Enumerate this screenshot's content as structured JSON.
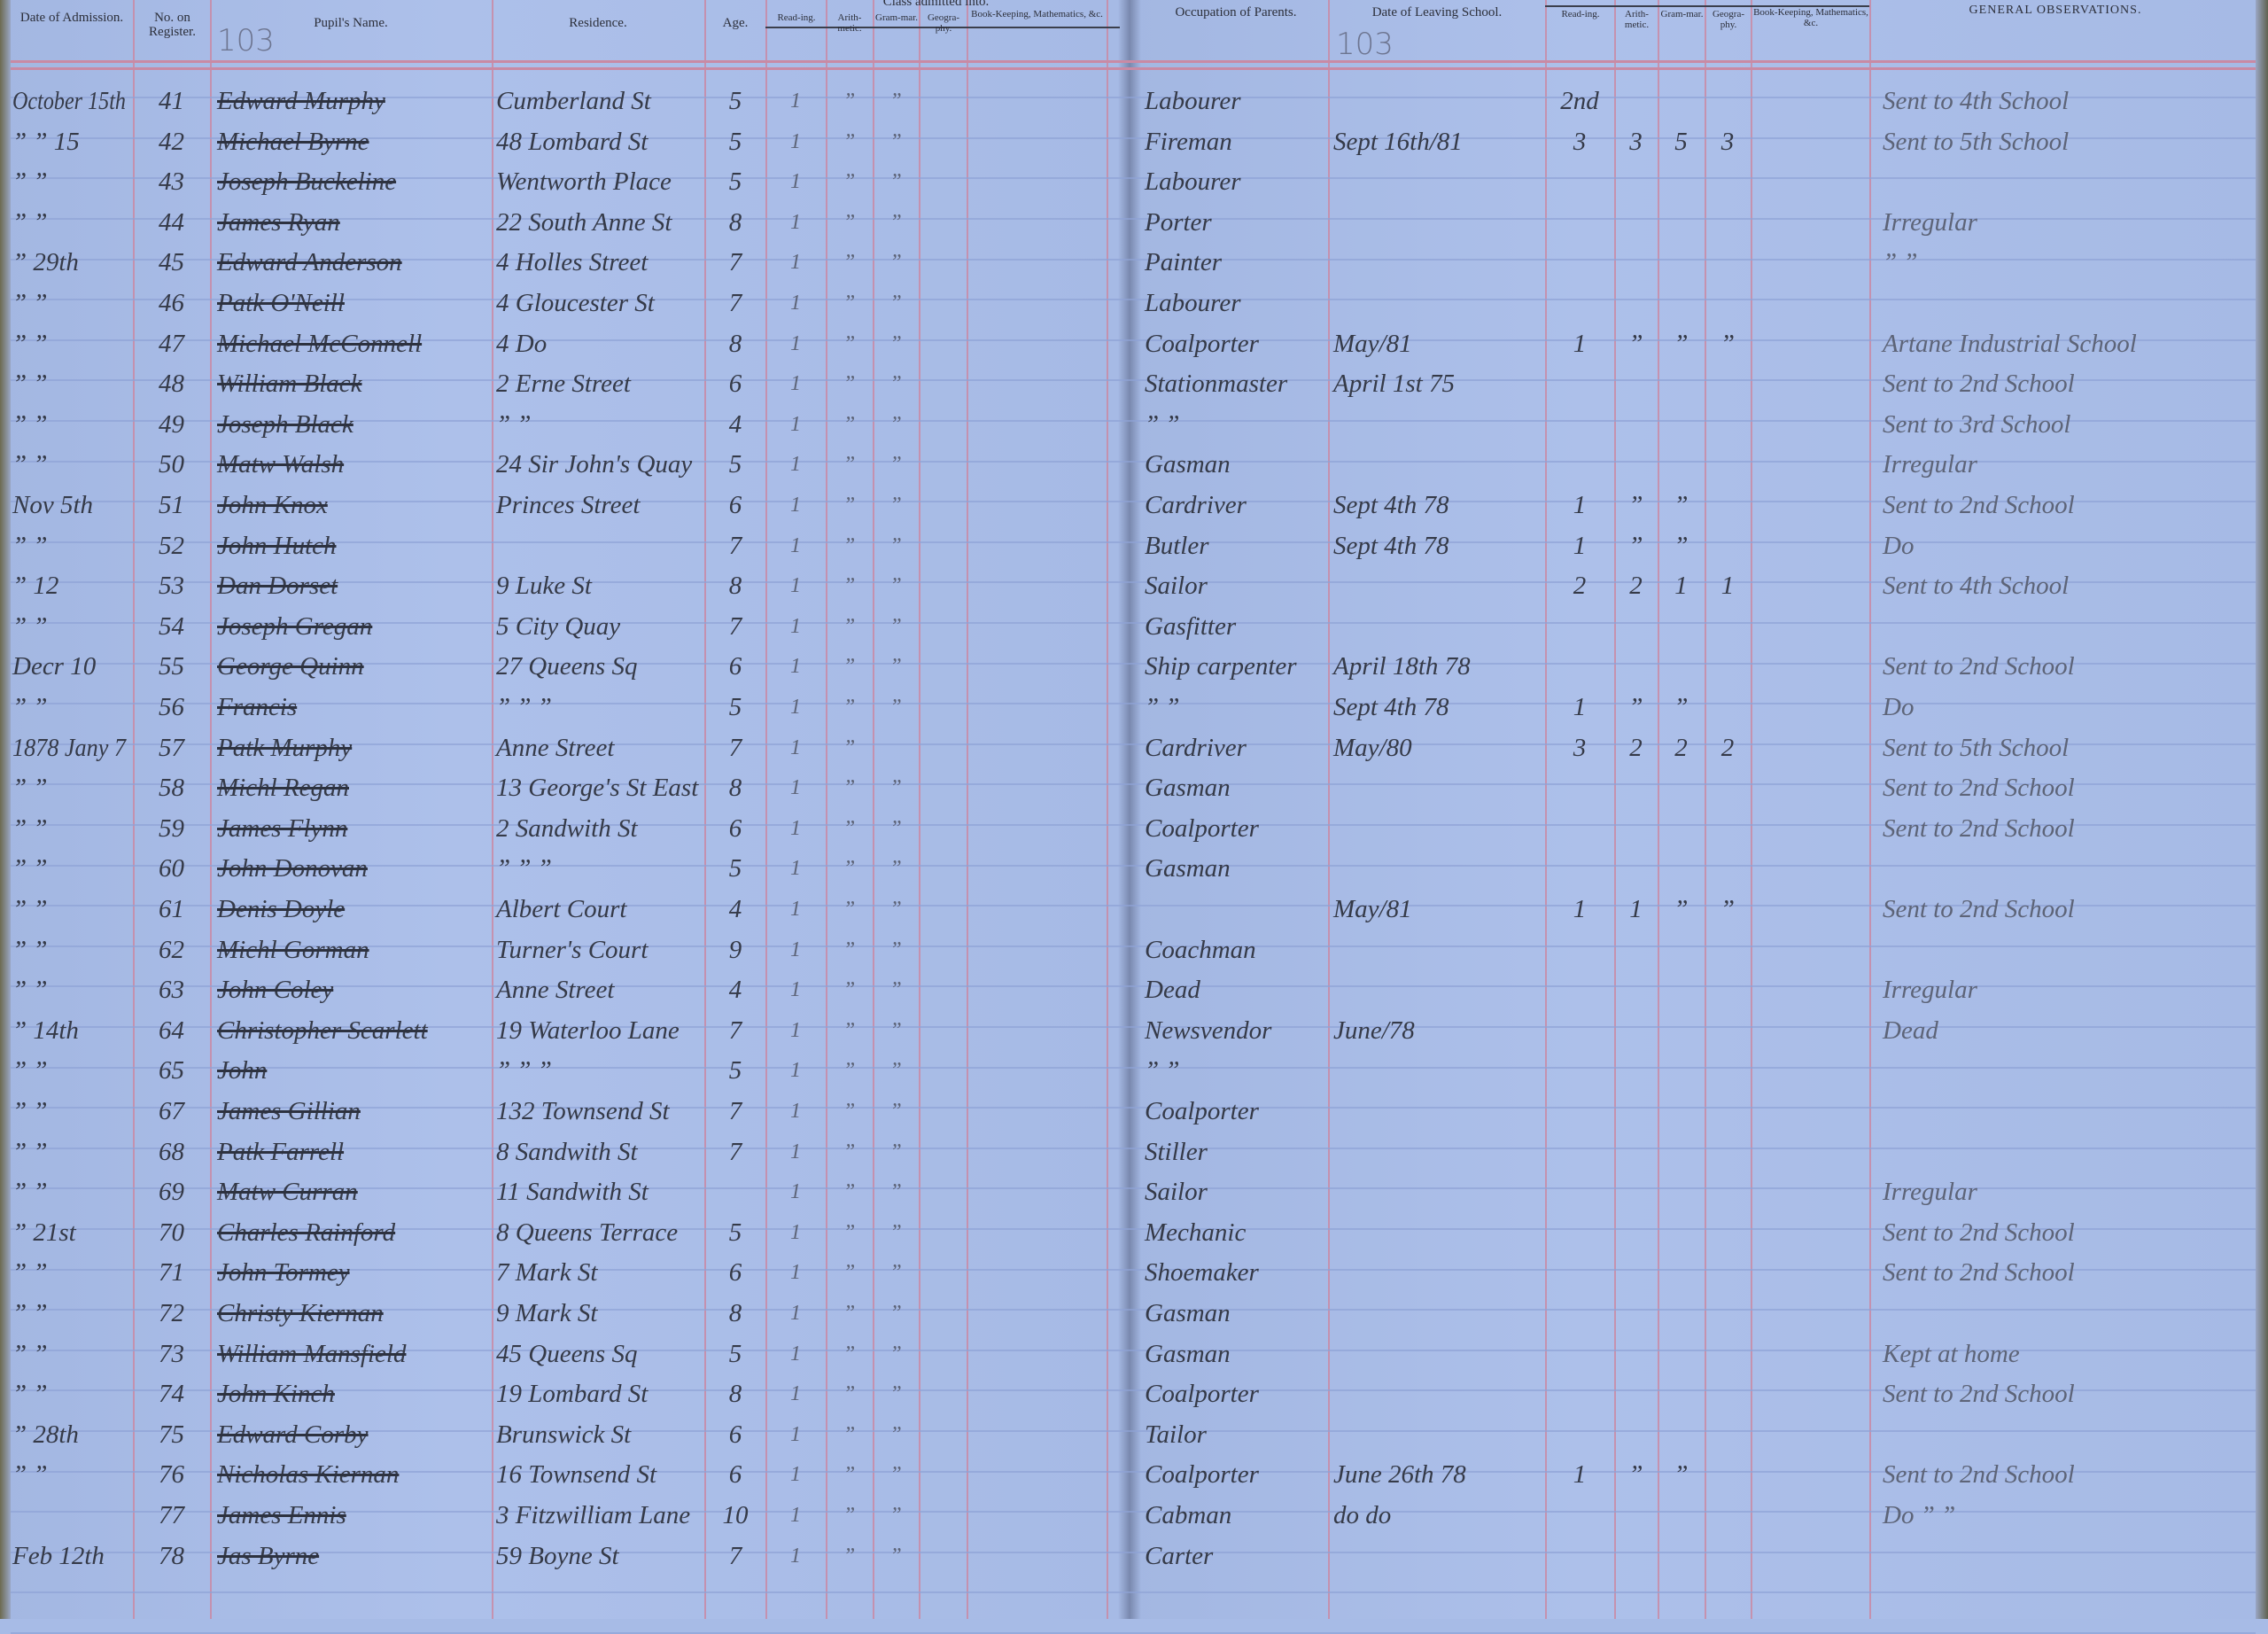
{
  "left_page": {
    "page_number": "103",
    "group_header": "Class admitted into.",
    "headers": {
      "date": "Date of Admission.",
      "no": "No. on Register.",
      "name": "Pupil's Name.",
      "residence": "Residence.",
      "age": "Age.",
      "reading": "Read-ing.",
      "arith": "Arith-metic.",
      "gram": "Gram-mar.",
      "geo": "Geogra-phy.",
      "book": "Book-Keeping, Mathematics, &c."
    }
  },
  "right_page": {
    "page_number": "103",
    "headers": {
      "occupation": "Occupation of Parents.",
      "leaving": "Date of Leaving School.",
      "reading": "Read-ing.",
      "arith": "Arith-metic.",
      "gram": "Gram-mar.",
      "geo": "Geogra-phy.",
      "book": "Book-Keeping, Mathematics, &c.",
      "observations": "GENERAL OBSERVATIONS."
    }
  },
  "colors": {
    "paper": "#a7bbe6",
    "red_rule": "#c98aa4",
    "blue_rule": "#8ea3d6",
    "ink": "#353a48"
  },
  "rows": [
    {
      "date": "October 15th",
      "no": "41",
      "name": "Edward Murphy",
      "residence": "Cumberland St",
      "age": "5",
      "admitted": [
        "1",
        "”",
        "”",
        ""
      ],
      "occupation": "Labourer",
      "left": "",
      "leaving": [
        "2nd",
        "",
        "",
        ""
      ],
      "observations": "Sent to 4th School"
    },
    {
      "date": "” ” 15",
      "no": "42",
      "name": "Michael Byrne",
      "residence": "48 Lombard St",
      "age": "5",
      "admitted": [
        "1",
        "”",
        "”",
        ""
      ],
      "occupation": "Fireman",
      "left": "Sept 16th/81",
      "leaving": [
        "3",
        "3",
        "5",
        "3"
      ],
      "observations": "Sent to 5th School"
    },
    {
      "date": "” ”",
      "no": "43",
      "name": "Joseph Buckeline",
      "residence": "Wentworth Place",
      "age": "5",
      "admitted": [
        "1",
        "”",
        "”",
        ""
      ],
      "occupation": "Labourer",
      "left": "",
      "leaving": [
        "",
        "",
        "",
        ""
      ],
      "observations": ""
    },
    {
      "date": "” ”",
      "no": "44",
      "name": "James Ryan",
      "residence": "22 South Anne St",
      "age": "8",
      "admitted": [
        "1",
        "”",
        "”",
        ""
      ],
      "occupation": "Porter",
      "left": "",
      "leaving": [
        "",
        "",
        "",
        ""
      ],
      "observations": "Irregular"
    },
    {
      "date": "” 29th",
      "no": "45",
      "name": "Edward Anderson",
      "residence": "4 Holles Street",
      "age": "7",
      "admitted": [
        "1",
        "”",
        "”",
        ""
      ],
      "occupation": "Painter",
      "left": "",
      "leaving": [
        "",
        "",
        "",
        ""
      ],
      "observations": "” ”"
    },
    {
      "date": "” ”",
      "no": "46",
      "name": "Patk O'Neill",
      "residence": "4 Gloucester St",
      "age": "7",
      "admitted": [
        "1",
        "”",
        "”",
        ""
      ],
      "occupation": "Labourer",
      "left": "",
      "leaving": [
        "",
        "",
        "",
        ""
      ],
      "observations": ""
    },
    {
      "date": "” ”",
      "no": "47",
      "name": "Michael McConnell",
      "residence": "4 Do",
      "age": "8",
      "admitted": [
        "1",
        "”",
        "”",
        ""
      ],
      "occupation": "Coalporter",
      "left": "May/81",
      "leaving": [
        "1",
        "”",
        "”",
        "”"
      ],
      "observations": "Artane Industrial School"
    },
    {
      "date": "” ”",
      "no": "48",
      "name": "William Black",
      "residence": "2 Erne Street",
      "age": "6",
      "admitted": [
        "1",
        "”",
        "”",
        ""
      ],
      "occupation": "Stationmaster",
      "left": "April 1st 75",
      "leaving": [
        "",
        "",
        "",
        ""
      ],
      "observations": "Sent to 2nd School"
    },
    {
      "date": "” ”",
      "no": "49",
      "name": "Joseph Black",
      "residence": "” ”",
      "age": "4",
      "admitted": [
        "1",
        "”",
        "”",
        ""
      ],
      "occupation": "” ”",
      "left": "",
      "leaving": [
        "",
        "",
        "",
        ""
      ],
      "observations": "Sent to 3rd School"
    },
    {
      "date": "” ”",
      "no": "50",
      "name": "Matw Walsh",
      "residence": "24 Sir John's Quay",
      "age": "5",
      "admitted": [
        "1",
        "”",
        "”",
        ""
      ],
      "occupation": "Gasman",
      "left": "",
      "leaving": [
        "",
        "",
        "",
        ""
      ],
      "observations": "Irregular"
    },
    {
      "date": "Nov 5th",
      "no": "51",
      "name": "John Knox",
      "residence": "Princes Street",
      "age": "6",
      "admitted": [
        "1",
        "”",
        "”",
        ""
      ],
      "occupation": "Cardriver",
      "left": "Sept 4th 78",
      "leaving": [
        "1",
        "”",
        "”",
        ""
      ],
      "observations": "Sent to 2nd School"
    },
    {
      "date": "” ”",
      "no": "52",
      "name": "John Hutch",
      "residence": "",
      "age": "7",
      "admitted": [
        "1",
        "”",
        "”",
        ""
      ],
      "occupation": "Butler",
      "left": "Sept 4th 78",
      "leaving": [
        "1",
        "”",
        "”",
        ""
      ],
      "observations": "Do"
    },
    {
      "date": "” 12",
      "no": "53",
      "name": "Dan Dorset",
      "residence": "9 Luke St",
      "age": "8",
      "admitted": [
        "1",
        "”",
        "”",
        ""
      ],
      "occupation": "Sailor",
      "left": "",
      "leaving": [
        "2",
        "2",
        "1",
        "1"
      ],
      "observations": "Sent to 4th School"
    },
    {
      "date": "” ”",
      "no": "54",
      "name": "Joseph Gregan",
      "residence": "5 City Quay",
      "age": "7",
      "admitted": [
        "1",
        "”",
        "”",
        ""
      ],
      "occupation": "Gasfitter",
      "left": "",
      "leaving": [
        "",
        "",
        "",
        ""
      ],
      "observations": ""
    },
    {
      "date": "Decr 10",
      "no": "55",
      "name": "George Quinn",
      "residence": "27 Queens Sq",
      "age": "6",
      "admitted": [
        "1",
        "”",
        "”",
        ""
      ],
      "occupation": "Ship carpenter",
      "left": "April 18th 78",
      "leaving": [
        "",
        "",
        "",
        ""
      ],
      "observations": "Sent to 2nd School"
    },
    {
      "date": "” ”",
      "no": "56",
      "name": "Francis",
      "residence": "” ” ”",
      "age": "5",
      "admitted": [
        "1",
        "”",
        "”",
        ""
      ],
      "occupation": "” ”",
      "left": "Sept 4th 78",
      "leaving": [
        "1",
        "”",
        "”",
        ""
      ],
      "observations": "Do"
    },
    {
      "date": "1878 Jany 7",
      "no": "57",
      "name": "Patk Murphy",
      "residence": "Anne Street",
      "age": "7",
      "admitted": [
        "1",
        "”",
        "",
        ""
      ],
      "occupation": "Cardriver",
      "left": "May/80",
      "leaving": [
        "3",
        "2",
        "2",
        "2"
      ],
      "observations": "Sent to 5th School"
    },
    {
      "date": "” ”",
      "no": "58",
      "name": "Michl Regan",
      "residence": "13 George's St East",
      "age": "8",
      "admitted": [
        "1",
        "”",
        "”",
        ""
      ],
      "occupation": "Gasman",
      "left": "",
      "leaving": [
        "",
        "",
        "",
        ""
      ],
      "observations": "Sent to 2nd School"
    },
    {
      "date": "” ”",
      "no": "59",
      "name": "James Flynn",
      "residence": "2 Sandwith St",
      "age": "6",
      "admitted": [
        "1",
        "”",
        "”",
        ""
      ],
      "occupation": "Coalporter",
      "left": "",
      "leaving": [
        "",
        "",
        "",
        ""
      ],
      "observations": "Sent to 2nd School"
    },
    {
      "date": "” ”",
      "no": "60",
      "name": "John Donovan",
      "residence": "” ” ”",
      "age": "5",
      "admitted": [
        "1",
        "”",
        "”",
        ""
      ],
      "occupation": "Gasman",
      "left": "",
      "leaving": [
        "",
        "",
        "",
        ""
      ],
      "observations": ""
    },
    {
      "date": "” ”",
      "no": "61",
      "name": "Denis Doyle",
      "residence": "Albert Court",
      "age": "4",
      "admitted": [
        "1",
        "”",
        "”",
        ""
      ],
      "occupation": "",
      "left": "May/81",
      "leaving": [
        "1",
        "1",
        "”",
        "”"
      ],
      "observations": "Sent to 2nd School"
    },
    {
      "date": "” ”",
      "no": "62",
      "name": "Michl Gorman",
      "residence": "Turner's Court",
      "age": "9",
      "admitted": [
        "1",
        "”",
        "”",
        ""
      ],
      "occupation": "Coachman",
      "left": "",
      "leaving": [
        "",
        "",
        "",
        ""
      ],
      "observations": ""
    },
    {
      "date": "” ”",
      "no": "63",
      "name": "John Coley",
      "residence": "Anne Street",
      "age": "4",
      "admitted": [
        "1",
        "”",
        "”",
        ""
      ],
      "occupation": "Dead",
      "left": "",
      "leaving": [
        "",
        "",
        "",
        ""
      ],
      "observations": "Irregular"
    },
    {
      "date": "” 14th",
      "no": "64",
      "name": "Christopher Scarlett",
      "residence": "19 Waterloo Lane",
      "age": "7",
      "admitted": [
        "1",
        "”",
        "”",
        ""
      ],
      "occupation": "Newsvendor",
      "left": "June/78",
      "leaving": [
        "",
        "",
        "",
        ""
      ],
      "observations": "Dead"
    },
    {
      "date": "” ”",
      "no": "65",
      "name": "John",
      "residence": "” ” ”",
      "age": "5",
      "admitted": [
        "1",
        "”",
        "”",
        ""
      ],
      "occupation": "” ”",
      "left": "",
      "leaving": [
        "",
        "",
        "",
        ""
      ],
      "observations": ""
    },
    {
      "date": "” ”",
      "no": "67",
      "name": "James Gillian",
      "residence": "132 Townsend St",
      "age": "7",
      "admitted": [
        "1",
        "”",
        "”",
        ""
      ],
      "occupation": "Coalporter",
      "left": "",
      "leaving": [
        "",
        "",
        "",
        ""
      ],
      "observations": ""
    },
    {
      "date": "” ”",
      "no": "68",
      "name": "Patk Farrell",
      "residence": "8 Sandwith St",
      "age": "7",
      "admitted": [
        "1",
        "”",
        "”",
        ""
      ],
      "occupation": "Stiller",
      "left": "",
      "leaving": [
        "",
        "",
        "",
        ""
      ],
      "observations": ""
    },
    {
      "date": "” ”",
      "no": "69",
      "name": "Matw Curran",
      "residence": "11 Sandwith St",
      "age": "",
      "admitted": [
        "1",
        "”",
        "”",
        ""
      ],
      "occupation": "Sailor",
      "left": "",
      "leaving": [
        "",
        "",
        "",
        ""
      ],
      "observations": "Irregular"
    },
    {
      "date": "” 21st",
      "no": "70",
      "name": "Charles Rainford",
      "residence": "8 Queens Terrace",
      "age": "5",
      "admitted": [
        "1",
        "”",
        "”",
        ""
      ],
      "occupation": "Mechanic",
      "left": "",
      "leaving": [
        "",
        "",
        "",
        ""
      ],
      "observations": "Sent to 2nd School"
    },
    {
      "date": "” ”",
      "no": "71",
      "name": "John Tormey",
      "residence": "7 Mark St",
      "age": "6",
      "admitted": [
        "1",
        "”",
        "”",
        ""
      ],
      "occupation": "Shoemaker",
      "left": "",
      "leaving": [
        "",
        "",
        "",
        ""
      ],
      "observations": "Sent to 2nd School"
    },
    {
      "date": "” ”",
      "no": "72",
      "name": "Christy Kiernan",
      "residence": "9 Mark St",
      "age": "8",
      "admitted": [
        "1",
        "”",
        "”",
        ""
      ],
      "occupation": "Gasman",
      "left": "",
      "leaving": [
        "",
        "",
        "",
        ""
      ],
      "observations": ""
    },
    {
      "date": "” ”",
      "no": "73",
      "name": "William Mansfield",
      "residence": "45 Queens Sq",
      "age": "5",
      "admitted": [
        "1",
        "”",
        "”",
        ""
      ],
      "occupation": "Gasman",
      "left": "",
      "leaving": [
        "",
        "",
        "",
        ""
      ],
      "observations": "Kept at home"
    },
    {
      "date": "” ”",
      "no": "74",
      "name": "John Kinch",
      "residence": "19 Lombard St",
      "age": "8",
      "admitted": [
        "1",
        "”",
        "”",
        ""
      ],
      "occupation": "Coalporter",
      "left": "",
      "leaving": [
        "",
        "",
        "",
        ""
      ],
      "observations": "Sent to 2nd School"
    },
    {
      "date": "” 28th",
      "no": "75",
      "name": "Edward Corby",
      "residence": "Brunswick St",
      "age": "6",
      "admitted": [
        "1",
        "”",
        "”",
        ""
      ],
      "occupation": "Tailor",
      "left": "",
      "leaving": [
        "",
        "",
        "",
        ""
      ],
      "observations": ""
    },
    {
      "date": "” ”",
      "no": "76",
      "name": "Nicholas Kiernan",
      "residence": "16 Townsend St",
      "age": "6",
      "admitted": [
        "1",
        "”",
        "”",
        ""
      ],
      "occupation": "Coalporter",
      "left": "June 26th 78",
      "leaving": [
        "1",
        "”",
        "”",
        ""
      ],
      "observations": "Sent to 2nd School"
    },
    {
      "date": "",
      "no": "77",
      "name": "James Ennis",
      "residence": "3 Fitzwilliam Lane",
      "age": "10",
      "admitted": [
        "1",
        "”",
        "”",
        ""
      ],
      "occupation": "Cabman",
      "left": "do do",
      "leaving": [
        "",
        "",
        "",
        ""
      ],
      "observations": "Do ” ”"
    },
    {
      "date": "Feb 12th",
      "no": "78",
      "name": "Jas Byrne",
      "residence": "59 Boyne St",
      "age": "7",
      "admitted": [
        "1",
        "”",
        "”",
        ""
      ],
      "occupation": "Carter",
      "left": "",
      "leaving": [
        "",
        "",
        "",
        ""
      ],
      "observations": ""
    }
  ]
}
